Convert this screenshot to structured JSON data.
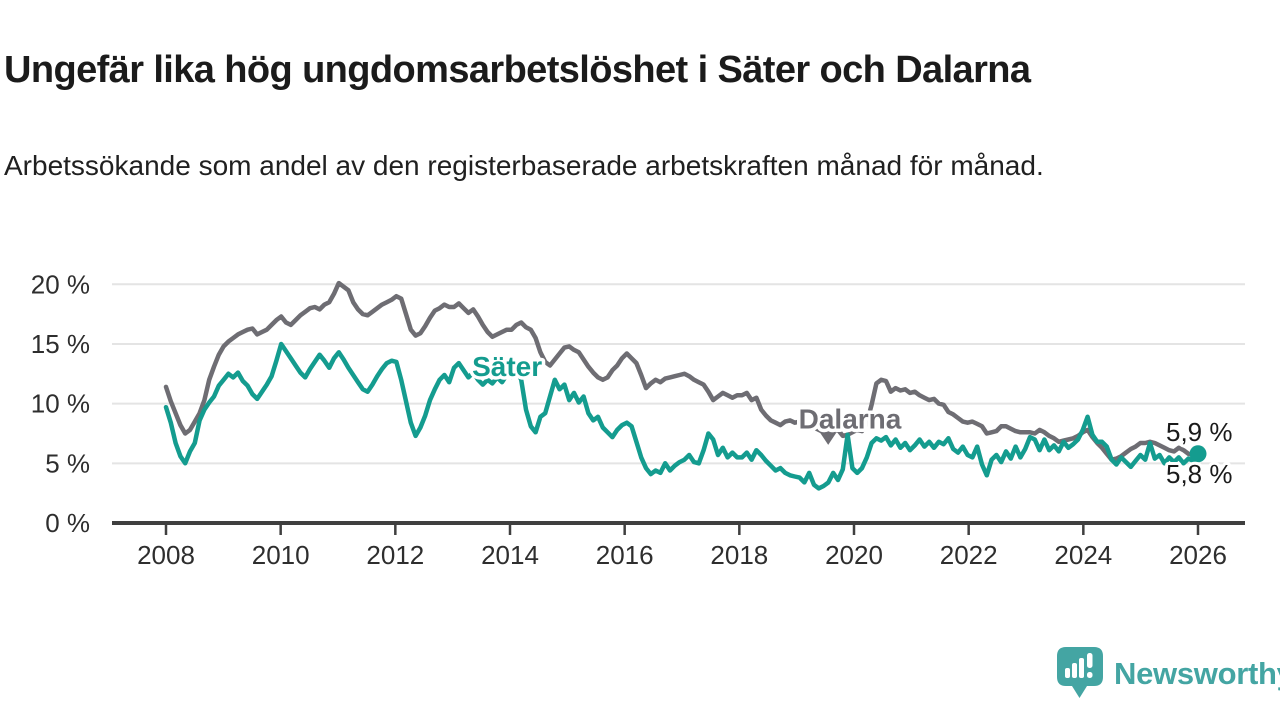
{
  "header": {
    "title": "Ungefär lika hög ungdomsarbetslöshet i Säter och Dalarna",
    "subtitle": "Arbetssökande som andel av den registerbaserade arbetskraften månad för månad."
  },
  "chart_data": {
    "type": "line",
    "unit": "%",
    "frequency": "monthly",
    "x_start": "2008-01",
    "x_end": "2025-12",
    "ylim": [
      0,
      21
    ],
    "grid": "horizontal-only",
    "yticks": [
      0,
      5,
      10,
      15,
      20
    ],
    "ytick_labels": [
      "0 %",
      "5 %",
      "10 %",
      "15 %",
      "20 %"
    ],
    "xticks": [
      2008,
      2010,
      2012,
      2014,
      2016,
      2018,
      2020,
      2022,
      2024,
      2026
    ],
    "colors": {
      "sater": "#149c8f",
      "dalarna": "#6e6d73",
      "grid": "#e4e4e4",
      "axis": "#3f3f3f",
      "tick_text": "#2e2e2e",
      "value_label": "#1a1a1a"
    },
    "series": [
      {
        "name": "Dalarna",
        "color": "#6e6d73",
        "end_label": "5,9 %",
        "end_dot": false,
        "values": [
          11.4,
          10.2,
          9.2,
          8.2,
          7.5,
          7.8,
          8.5,
          9.2,
          10.3,
          12.0,
          13.1,
          14.1,
          14.8,
          15.2,
          15.5,
          15.8,
          16.0,
          16.2,
          16.3,
          15.8,
          16.0,
          16.2,
          16.6,
          17.0,
          17.3,
          16.8,
          16.6,
          17.0,
          17.4,
          17.7,
          18.0,
          18.1,
          17.9,
          18.3,
          18.5,
          19.2,
          20.1,
          19.8,
          19.5,
          18.5,
          17.9,
          17.5,
          17.4,
          17.7,
          18.0,
          18.3,
          18.5,
          18.7,
          19.0,
          18.8,
          17.5,
          16.2,
          15.7,
          15.9,
          16.5,
          17.2,
          17.8,
          18.0,
          18.3,
          18.1,
          18.1,
          18.4,
          18.0,
          17.6,
          17.9,
          17.3,
          16.6,
          16.0,
          15.6,
          15.8,
          16.0,
          16.2,
          16.2,
          16.6,
          16.8,
          16.4,
          16.2,
          15.5,
          14.3,
          13.5,
          13.2,
          13.7,
          14.2,
          14.7,
          14.8,
          14.5,
          14.3,
          13.7,
          13.1,
          12.6,
          12.2,
          12.0,
          12.2,
          12.8,
          13.2,
          13.8,
          14.2,
          13.8,
          13.4,
          12.4,
          11.3,
          11.7,
          12.0,
          11.8,
          12.1,
          12.2,
          12.3,
          12.4,
          12.5,
          12.3,
          12.0,
          11.8,
          11.6,
          11.0,
          10.3,
          10.6,
          10.9,
          10.7,
          10.5,
          10.7,
          10.7,
          10.9,
          10.3,
          10.5,
          9.5,
          9.0,
          8.6,
          8.4,
          8.2,
          8.5,
          8.6,
          8.4,
          8.5,
          8.4,
          8.1,
          8.0,
          7.8,
          7.6,
          7.5,
          7.7,
          7.8,
          7.3,
          7.4,
          7.6,
          7.8,
          7.7,
          8.4,
          9.9,
          11.7,
          12.0,
          11.9,
          11.0,
          11.3,
          11.1,
          11.2,
          10.9,
          11.0,
          10.7,
          10.5,
          10.3,
          10.4,
          10.0,
          9.9,
          9.3,
          9.1,
          8.8,
          8.5,
          8.4,
          8.5,
          8.3,
          8.1,
          7.5,
          7.6,
          7.7,
          8.1,
          8.1,
          7.9,
          7.7,
          7.6,
          7.6,
          7.6,
          7.5,
          7.8,
          7.6,
          7.3,
          7.1,
          6.8,
          6.9,
          7.0,
          7.1,
          7.3,
          7.6,
          7.8,
          7.2,
          6.7,
          6.3,
          5.8,
          5.3,
          5.4,
          5.6,
          5.9,
          6.2,
          6.4,
          6.7,
          6.7,
          6.8,
          6.7,
          6.5,
          6.3,
          6.1,
          6.0,
          6.3,
          6.1,
          5.8,
          5.7,
          5.9
        ]
      },
      {
        "name": "Säter",
        "color": "#149c8f",
        "end_label": "5,8 %",
        "end_dot": true,
        "values": [
          9.7,
          8.4,
          6.7,
          5.6,
          5.0,
          6.0,
          6.7,
          8.6,
          9.5,
          10.1,
          10.6,
          11.5,
          12.0,
          12.5,
          12.2,
          12.6,
          11.9,
          11.5,
          10.8,
          10.4,
          11.0,
          11.6,
          12.3,
          13.6,
          15.0,
          14.4,
          13.8,
          13.2,
          12.6,
          12.2,
          12.9,
          13.5,
          14.1,
          13.6,
          13.0,
          13.8,
          14.3,
          13.7,
          13.0,
          12.4,
          11.8,
          11.2,
          11.0,
          11.6,
          12.3,
          12.9,
          13.4,
          13.6,
          13.5,
          12.0,
          10.2,
          8.4,
          7.3,
          8.0,
          9.0,
          10.3,
          11.2,
          12.0,
          12.4,
          11.8,
          13.0,
          13.4,
          12.8,
          12.2,
          12.6,
          12.0,
          11.6,
          12.0,
          11.7,
          12.2,
          11.8,
          12.4,
          12.2,
          12.8,
          12.0,
          9.5,
          8.1,
          7.6,
          8.9,
          9.2,
          10.6,
          12.0,
          11.2,
          11.6,
          10.3,
          10.9,
          10.1,
          10.6,
          9.2,
          8.6,
          8.9,
          8.0,
          7.6,
          7.2,
          7.8,
          8.2,
          8.4,
          8.1,
          6.8,
          5.5,
          4.6,
          4.1,
          4.4,
          4.2,
          5.0,
          4.4,
          4.8,
          5.1,
          5.3,
          5.7,
          5.1,
          5.0,
          6.1,
          7.5,
          7.0,
          5.7,
          6.3,
          5.5,
          5.9,
          5.5,
          5.5,
          5.9,
          5.3,
          6.1,
          5.7,
          5.2,
          4.8,
          4.4,
          4.6,
          4.2,
          4.0,
          3.9,
          3.8,
          3.4,
          4.2,
          3.2,
          2.9,
          3.1,
          3.4,
          4.2,
          3.6,
          4.5,
          7.4,
          4.6,
          4.2,
          4.6,
          5.5,
          6.7,
          7.1,
          6.9,
          7.2,
          6.5,
          7.0,
          6.3,
          6.7,
          6.1,
          6.5,
          7.0,
          6.4,
          6.8,
          6.3,
          6.8,
          6.6,
          7.1,
          6.2,
          5.9,
          6.4,
          5.7,
          5.5,
          6.4,
          4.9,
          4.0,
          5.3,
          5.7,
          5.1,
          6.0,
          5.4,
          6.4,
          5.5,
          6.2,
          7.2,
          7.0,
          6.1,
          7.0,
          6.1,
          6.5,
          6.0,
          6.8,
          6.3,
          6.6,
          7.0,
          7.8,
          8.9,
          7.4,
          6.8,
          6.8,
          6.4,
          5.3,
          4.9,
          5.5,
          5.1,
          4.7,
          5.2,
          5.7,
          5.3,
          6.7,
          5.4,
          5.7,
          5.0,
          5.5,
          5.1,
          5.5,
          5.0,
          5.4,
          5.2,
          5.8
        ]
      }
    ],
    "annotations": [
      {
        "text": "Säter",
        "year": 2013.95,
        "value": 12.3,
        "color": "#149c8f",
        "arrow": null
      },
      {
        "text": "Dalarna",
        "year": 2019.93,
        "value": 7.9,
        "color": "#6e6d73",
        "arrow": {
          "year": 2019.55,
          "value": 6.55
        }
      }
    ]
  },
  "footer": {
    "logo_text": "Newsworthy",
    "logo_color": "#44a5a3"
  }
}
